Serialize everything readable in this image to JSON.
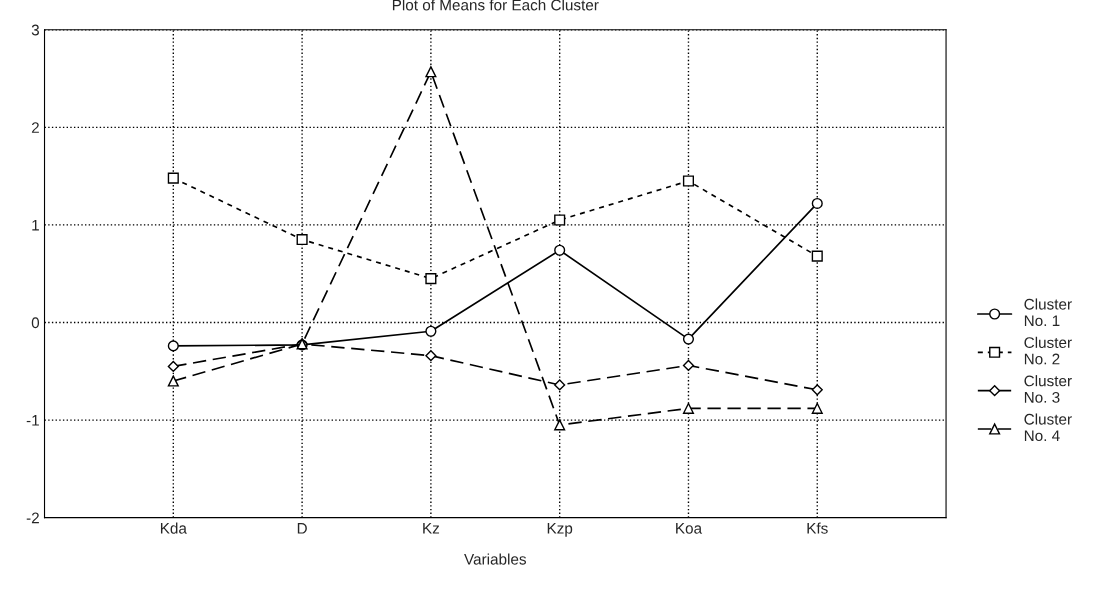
{
  "chart_data": {
    "type": "line",
    "title": "Plot of Means for Each Cluster",
    "xlabel": "Variables",
    "categories": [
      "Kda",
      "D",
      "Kz",
      "Kzp",
      "Koa",
      "Kfs"
    ],
    "series": [
      {
        "name": "Cluster\nNo. 1",
        "color": "#000000",
        "marker": "circle",
        "line_style": "solid",
        "values": [
          -0.24,
          -0.23,
          -0.09,
          0.74,
          -0.17,
          1.22
        ]
      },
      {
        "name": "Cluster\nNo. 2",
        "color": "#000000",
        "marker": "square",
        "line_style": "dotted",
        "values": [
          1.48,
          0.85,
          0.45,
          1.05,
          1.45,
          0.68
        ]
      },
      {
        "name": "Cluster\nNo. 3",
        "color": "#000000",
        "marker": "diamond",
        "line_style": "dashed",
        "values": [
          -0.45,
          -0.22,
          -0.34,
          -0.64,
          -0.44,
          -0.69
        ]
      },
      {
        "name": "Cluster\nNo. 4",
        "color": "#000000",
        "marker": "triangle",
        "line_style": "dashed",
        "values": [
          -0.6,
          -0.22,
          2.57,
          -1.05,
          -0.88,
          -0.88
        ]
      }
    ],
    "ylim": [
      -2,
      3
    ],
    "yticks": [
      -2,
      -1,
      0,
      1,
      2,
      3
    ],
    "grid": true,
    "legend": "right"
  }
}
